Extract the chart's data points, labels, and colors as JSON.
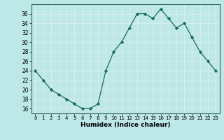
{
  "x": [
    0,
    1,
    2,
    3,
    4,
    5,
    6,
    7,
    8,
    9,
    10,
    11,
    12,
    13,
    14,
    15,
    16,
    17,
    18,
    19,
    20,
    21,
    22,
    23
  ],
  "y": [
    24,
    22,
    20,
    19,
    18,
    17,
    16,
    16,
    17,
    24,
    28,
    30,
    33,
    36,
    36,
    35,
    37,
    35,
    33,
    34,
    31,
    28,
    26,
    24
  ],
  "line_color": "#1a6b5a",
  "marker": "D",
  "marker_size": 2.2,
  "xlabel": "Humidex (Indice chaleur)",
  "xlim": [
    -0.5,
    23.5
  ],
  "ylim": [
    15,
    38
  ],
  "yticks": [
    16,
    18,
    20,
    22,
    24,
    26,
    28,
    30,
    32,
    34,
    36
  ],
  "xticks": [
    0,
    1,
    2,
    3,
    4,
    5,
    6,
    7,
    8,
    9,
    10,
    11,
    12,
    13,
    14,
    15,
    16,
    17,
    18,
    19,
    20,
    21,
    22,
    23
  ],
  "xtick_labels": [
    "0",
    "1",
    "2",
    "3",
    "4",
    "5",
    "6",
    "7",
    "8",
    "9",
    "10",
    "11",
    "12",
    "13",
    "14",
    "15",
    "16",
    "17",
    "18",
    "19",
    "20",
    "21",
    "22",
    "23"
  ],
  "bg_color": "#bee8e8",
  "grid_color": "#d8eeee",
  "spine_color": "#336655",
  "xlabel_fontsize": 6.5,
  "xtick_fontsize": 5.0,
  "ytick_fontsize": 5.5
}
